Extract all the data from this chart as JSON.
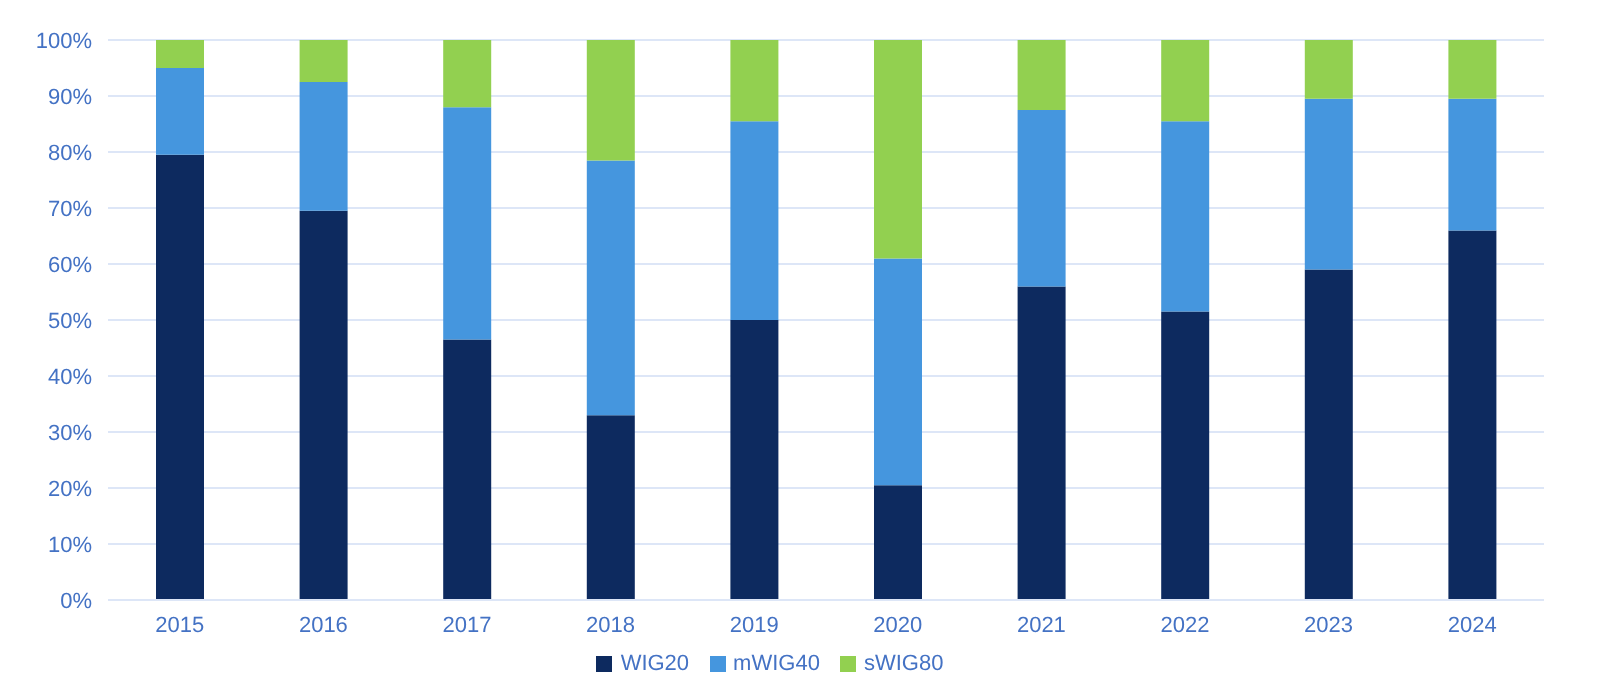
{
  "chart_data": {
    "type": "bar",
    "stacked": true,
    "categories": [
      "2015",
      "2016",
      "2017",
      "2018",
      "2019",
      "2020",
      "2021",
      "2022",
      "2023",
      "2024"
    ],
    "series": [
      {
        "name": "WIG20",
        "color": "#0d2a5f",
        "values": [
          79.5,
          69.5,
          46.5,
          33,
          50,
          20.5,
          56,
          51.5,
          59,
          66
        ]
      },
      {
        "name": "mWIG40",
        "color": "#4596de",
        "values": [
          15.5,
          23,
          41.5,
          45.5,
          35.5,
          40.5,
          31.5,
          34,
          30.5,
          23.5
        ]
      },
      {
        "name": "sWIG80",
        "color": "#92d050",
        "values": [
          5,
          7.5,
          12,
          21.5,
          14.5,
          39,
          12.5,
          14.5,
          10.5,
          10.5
        ]
      }
    ],
    "ylim": [
      0,
      100
    ],
    "yticks": [
      {
        "value": 0,
        "label": "0%"
      },
      {
        "value": 10,
        "label": "10%"
      },
      {
        "value": 20,
        "label": "20%"
      },
      {
        "value": 30,
        "label": "30%"
      },
      {
        "value": 40,
        "label": "40%"
      },
      {
        "value": 50,
        "label": "50%"
      },
      {
        "value": 60,
        "label": "60%"
      },
      {
        "value": 70,
        "label": "70%"
      },
      {
        "value": 80,
        "label": "80%"
      },
      {
        "value": 90,
        "label": "90%"
      },
      {
        "value": 100,
        "label": "100%"
      }
    ],
    "grid": "y",
    "legend": "bottom"
  }
}
